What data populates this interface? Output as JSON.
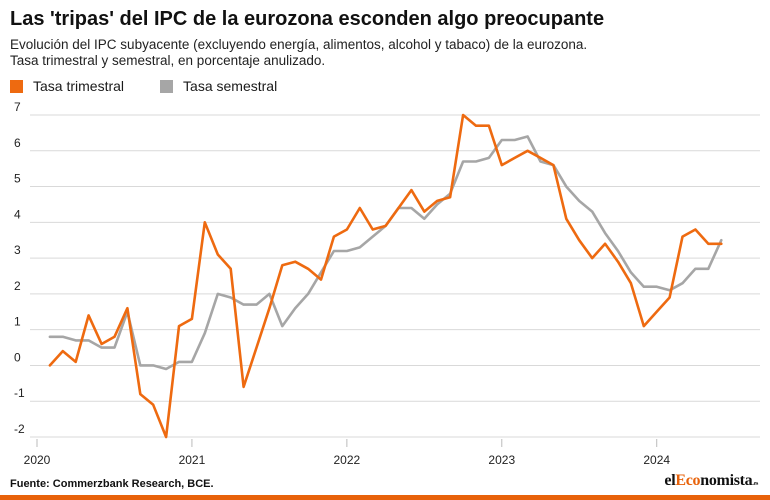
{
  "header": {
    "title": "Las 'tripas' del IPC de la eurozona esconden algo preocupante",
    "subtitle_line1": "Evolución del IPC subyacente (excluyendo energía, alimentos, alcohol y tabaco) de la eurozona.",
    "subtitle_line2": "Tasa trimestral y semestral, en porcentaje anulizado."
  },
  "footer": {
    "source": "Fuente: Commerzbank Research, BCE.",
    "brand_prefix": "el",
    "brand_accent": "Eco",
    "brand_rest": "nomista",
    "brand_suffix": ".es"
  },
  "colors": {
    "trimestral": "#ee6a10",
    "semestral": "#a6a6a6",
    "grid": "#d9d9d9",
    "brand_bar": "#e8620a"
  },
  "chart_data": {
    "type": "line",
    "title": "",
    "xlabel": "",
    "ylabel": "",
    "xlim": [
      2020.0,
      2024.6667
    ],
    "ylim": [
      -2.3,
      7.3
    ],
    "yticks": [
      7,
      6,
      5,
      4,
      3,
      2,
      1,
      0,
      -1,
      -2
    ],
    "xticks": [
      2020,
      2021,
      2022,
      2023,
      2024
    ],
    "grid": true,
    "legend_position": "top-left",
    "series": [
      {
        "name": "Tasa trimestral",
        "color": "#ee6a10",
        "x": [
          2020.0833,
          2020.1667,
          2020.25,
          2020.3333,
          2020.4167,
          2020.5,
          2020.5833,
          2020.6667,
          2020.75,
          2020.8333,
          2020.9167,
          2021.0,
          2021.0833,
          2021.1667,
          2021.25,
          2021.3333,
          2021.4167,
          2021.5,
          2021.5833,
          2021.6667,
          2021.75,
          2021.8333,
          2021.9167,
          2022.0,
          2022.0833,
          2022.1667,
          2022.25,
          2022.3333,
          2022.4167,
          2022.5,
          2022.5833,
          2022.6667,
          2022.75,
          2022.8333,
          2022.9167,
          2023.0,
          2023.0833,
          2023.1667,
          2023.25,
          2023.3333,
          2023.4167,
          2023.5,
          2023.5833,
          2023.6667,
          2023.75,
          2023.8333,
          2023.9167,
          2024.0,
          2024.0833,
          2024.1667,
          2024.25,
          2024.3333,
          2024.4167
        ],
        "y": [
          0.0,
          0.4,
          0.1,
          1.4,
          0.6,
          0.8,
          1.6,
          -0.8,
          -1.1,
          -2.0,
          1.1,
          1.3,
          4.0,
          3.1,
          2.7,
          -0.6,
          0.5,
          1.6,
          2.8,
          2.9,
          2.7,
          2.4,
          3.6,
          3.8,
          4.4,
          3.8,
          3.9,
          4.4,
          4.9,
          4.3,
          4.6,
          4.7,
          7.0,
          6.7,
          6.7,
          5.6,
          5.8,
          6.0,
          5.8,
          5.6,
          4.1,
          3.5,
          3.0,
          3.4,
          2.9,
          2.3,
          1.1,
          1.5,
          1.9,
          3.6,
          3.8,
          3.4,
          3.4
        ]
      },
      {
        "name": "Tasa semestral",
        "color": "#a6a6a6",
        "x": [
          2020.0833,
          2020.1667,
          2020.25,
          2020.3333,
          2020.4167,
          2020.5,
          2020.5833,
          2020.6667,
          2020.75,
          2020.8333,
          2020.9167,
          2021.0,
          2021.0833,
          2021.1667,
          2021.25,
          2021.3333,
          2021.4167,
          2021.5,
          2021.5833,
          2021.6667,
          2021.75,
          2021.8333,
          2021.9167,
          2022.0,
          2022.0833,
          2022.1667,
          2022.25,
          2022.3333,
          2022.4167,
          2022.5,
          2022.5833,
          2022.6667,
          2022.75,
          2022.8333,
          2022.9167,
          2023.0,
          2023.0833,
          2023.1667,
          2023.25,
          2023.3333,
          2023.4167,
          2023.5,
          2023.5833,
          2023.6667,
          2023.75,
          2023.8333,
          2023.9167,
          2024.0,
          2024.0833,
          2024.1667,
          2024.25,
          2024.3333,
          2024.4167
        ],
        "y": [
          0.8,
          0.8,
          0.7,
          0.7,
          0.5,
          0.5,
          1.5,
          0.0,
          0.0,
          -0.1,
          0.1,
          0.1,
          0.9,
          2.0,
          1.9,
          1.7,
          1.7,
          2.0,
          1.1,
          1.6,
          2.0,
          2.6,
          3.2,
          3.2,
          3.3,
          3.6,
          3.9,
          4.4,
          4.4,
          4.1,
          4.5,
          4.8,
          5.7,
          5.7,
          5.8,
          6.3,
          6.3,
          6.4,
          5.7,
          5.6,
          5.0,
          4.6,
          4.3,
          3.7,
          3.2,
          2.6,
          2.2,
          2.2,
          2.1,
          2.3,
          2.7,
          2.7,
          3.5
        ]
      }
    ]
  }
}
